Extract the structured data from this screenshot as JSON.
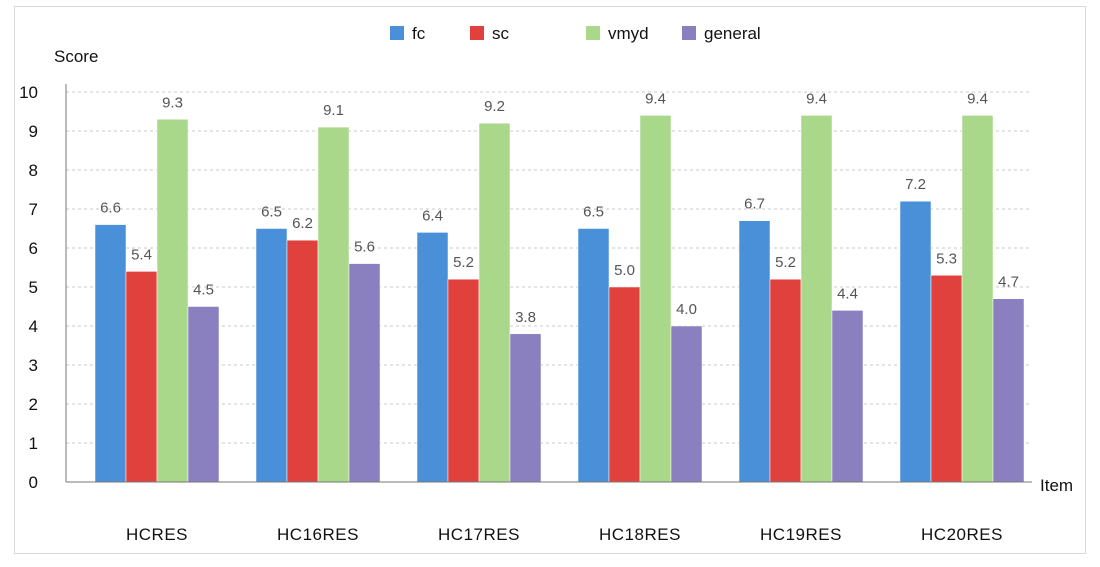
{
  "chart_data": {
    "type": "bar",
    "title": "",
    "ylabel": "Score",
    "xlabel": "Item",
    "ylim": [
      0,
      10
    ],
    "yticks": [
      0,
      1,
      2,
      3,
      4,
      5,
      6,
      7,
      8,
      9,
      10
    ],
    "grid": true,
    "legend_position": "top",
    "categories": [
      "HCRES",
      "HC16RES",
      "HC17RES",
      "HC18RES",
      "HC19RES",
      "HC20RES"
    ],
    "series": [
      {
        "name": "fc",
        "color": "#4a90d8",
        "values": [
          6.6,
          6.5,
          6.4,
          6.5,
          6.7,
          7.2
        ]
      },
      {
        "name": "sc",
        "color": "#e0413d",
        "values": [
          5.4,
          6.2,
          5.2,
          5.0,
          5.2,
          5.3
        ]
      },
      {
        "name": "vmyd",
        "color": "#a9d88a",
        "values": [
          9.3,
          9.1,
          9.2,
          9.4,
          9.4,
          9.4
        ]
      },
      {
        "name": "general",
        "color": "#8a7fbf",
        "values": [
          4.5,
          5.6,
          3.8,
          4.0,
          4.4,
          4.7
        ]
      }
    ]
  }
}
